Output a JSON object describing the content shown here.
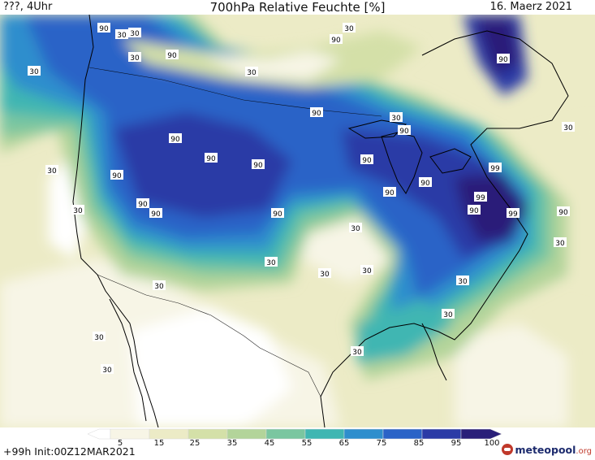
{
  "header": {
    "left": "???, 4Uhr",
    "title": "700hPa Relative Feuchte [%]",
    "date": "16. Maerz 2021"
  },
  "footer": {
    "run": "+99h Init:00Z12MAR2021",
    "brand_main": "meteopool",
    "brand_tld": ".org"
  },
  "legend": {
    "ticks": [
      "5",
      "15",
      "25",
      "35",
      "45",
      "55",
      "65",
      "75",
      "85",
      "95",
      "100"
    ],
    "colors": [
      "#ffffff",
      "#f7f5e6",
      "#ecebc6",
      "#d4e0a8",
      "#b3d49a",
      "#7ac6a0",
      "#3fb6b2",
      "#2e8ecd",
      "#2a63c7",
      "#2b3ba6",
      "#2a1f79"
    ]
  },
  "map_labels": [
    {
      "text": "90"
    },
    {
      "text": "30"
    },
    {
      "text": "30"
    },
    {
      "text": "90"
    },
    {
      "text": "30"
    },
    {
      "text": "90"
    },
    {
      "text": "30"
    },
    {
      "text": "90"
    },
    {
      "text": "30"
    },
    {
      "text": "90"
    },
    {
      "text": "90"
    },
    {
      "text": "30"
    },
    {
      "text": "90"
    },
    {
      "text": "90"
    },
    {
      "text": "90"
    },
    {
      "text": "90"
    },
    {
      "text": "90"
    },
    {
      "text": "90"
    },
    {
      "text": "30"
    },
    {
      "text": "90"
    },
    {
      "text": "90"
    },
    {
      "text": "90"
    },
    {
      "text": "99"
    },
    {
      "text": "99"
    },
    {
      "text": "90"
    },
    {
      "text": "99"
    },
    {
      "text": "90"
    },
    {
      "text": "30"
    },
    {
      "text": "30"
    },
    {
      "text": "30"
    },
    {
      "text": "30"
    },
    {
      "text": "30"
    },
    {
      "text": "90"
    },
    {
      "text": "30"
    },
    {
      "text": "30"
    },
    {
      "text": "30"
    },
    {
      "text": "30"
    },
    {
      "text": "30"
    },
    {
      "text": "30"
    },
    {
      "text": "30"
    },
    {
      "text": "30"
    },
    {
      "text": "30"
    }
  ]
}
